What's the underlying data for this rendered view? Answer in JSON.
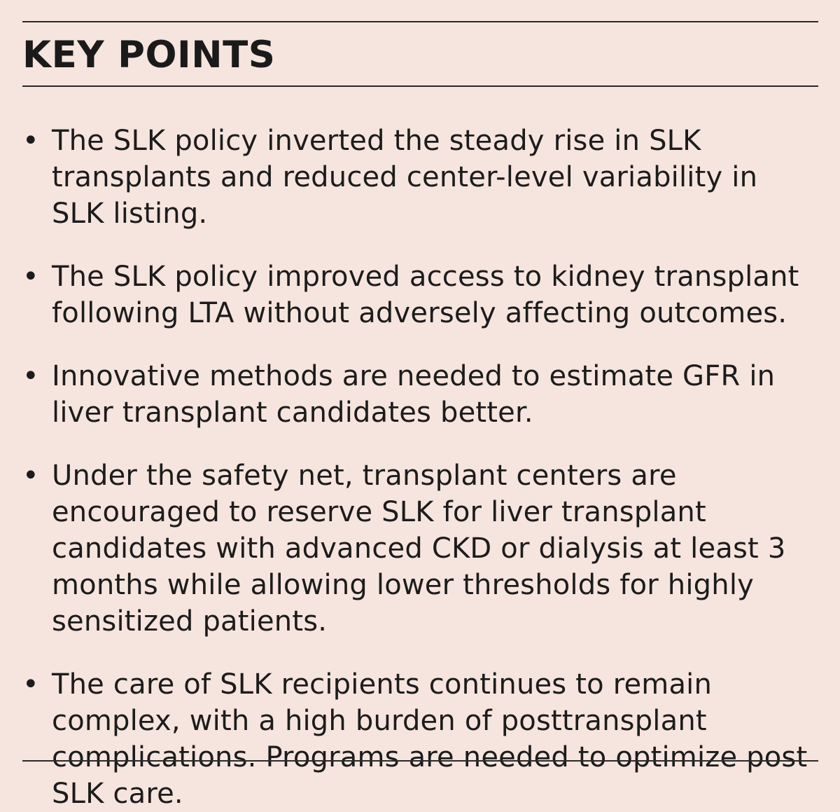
{
  "heading": "KEY POINTS",
  "points": [
    "The SLK policy inverted the steady rise in SLK transplants and reduced center-level variability in SLK listing.",
    "The SLK policy improved access to kidney transplant following LTA without adversely affecting outcomes.",
    "Innovative methods are needed to estimate GFR in liver transplant candidates better.",
    "Under the safety net, transplant centers are encouraged to reserve SLK for liver transplant candidates with advanced CKD or dialysis at least 3 months while allowing lower thresholds for highly sensitized patients.",
    "The care of SLK recipients continues to remain complex, with a high burden of posttransplant complications. Programs are needed to optimize post SLK care."
  ],
  "bullet_glyph": "•",
  "colors": {
    "background": "#f6e4de",
    "text": "#1c1c1c",
    "rule": "#2a2a2a"
  }
}
